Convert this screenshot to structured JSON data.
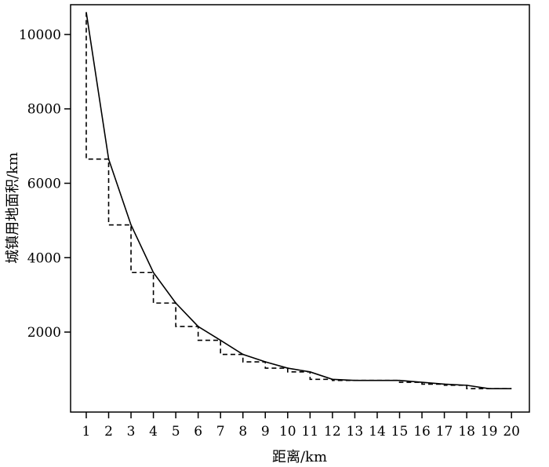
{
  "chart_data": {
    "type": "line",
    "title": "",
    "xlabel": "距离/km",
    "ylabel": "城镇用地面积/km",
    "xlim": [
      0.3,
      20.8
    ],
    "ylim": [
      -150,
      10800
    ],
    "x_ticks": [
      1,
      2,
      3,
      4,
      5,
      6,
      7,
      8,
      9,
      10,
      11,
      12,
      13,
      14,
      15,
      16,
      17,
      18,
      19,
      20
    ],
    "y_ticks": [
      2000,
      4000,
      6000,
      8000,
      10000
    ],
    "grid": false,
    "legend": "none",
    "series": [
      {
        "style": "solid",
        "color": "#000000",
        "x": [
          1,
          2,
          3,
          4,
          5,
          6,
          7,
          8,
          9,
          10,
          11,
          12,
          13,
          14,
          15,
          16,
          17,
          18,
          19,
          20
        ],
        "y": [
          10600,
          6650,
          4880,
          3600,
          2780,
          2150,
          1780,
          1400,
          1200,
          1030,
          930,
          730,
          700,
          700,
          700,
          650,
          600,
          570,
          480,
          480
        ]
      },
      {
        "style": "dashed-step",
        "color": "#000000",
        "x": [
          1,
          2,
          3,
          4,
          5,
          6,
          7,
          8,
          9,
          10,
          11,
          12,
          13,
          14,
          15,
          16,
          17,
          18,
          19,
          20
        ],
        "y": [
          6650,
          4880,
          3600,
          2780,
          2150,
          1780,
          1400,
          1200,
          1030,
          930,
          730,
          700,
          700,
          700,
          650,
          600,
          570,
          480,
          480,
          480
        ]
      }
    ]
  }
}
